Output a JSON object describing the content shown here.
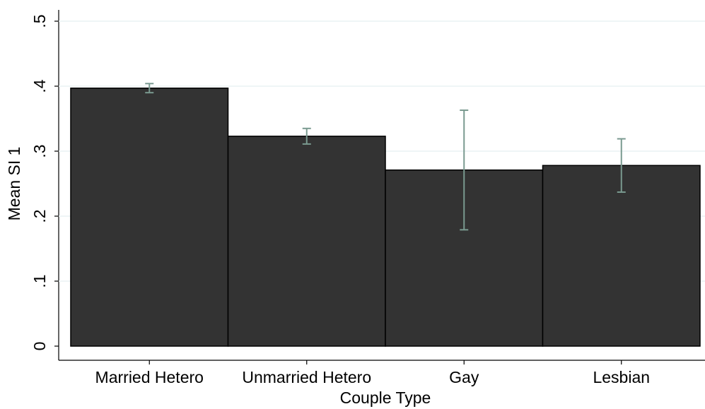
{
  "chart_data": {
    "type": "bar",
    "x_label": "Couple Type",
    "y_label": "Mean SI 1",
    "categories": [
      "Married Hetero",
      "Unmarried Hetero",
      "Gay",
      "Lesbian"
    ],
    "values": [
      0.397,
      0.323,
      0.271,
      0.278
    ],
    "errors": [
      0.007,
      0.012,
      0.092,
      0.041
    ],
    "color": "#333333",
    "error_color": "#7a9a90",
    "ylim": [
      0,
      0.5
    ],
    "yticks": [
      0,
      {
        "value": 0.1,
        "label": ".1"
      },
      {
        "value": 0.2,
        "label": ".2"
      },
      {
        "value": 0.3,
        "label": ".3"
      },
      {
        "value": 0.4,
        "label": ".4"
      },
      {
        "value": 0.5,
        "label": ".5"
      }
    ],
    "grid": true
  }
}
